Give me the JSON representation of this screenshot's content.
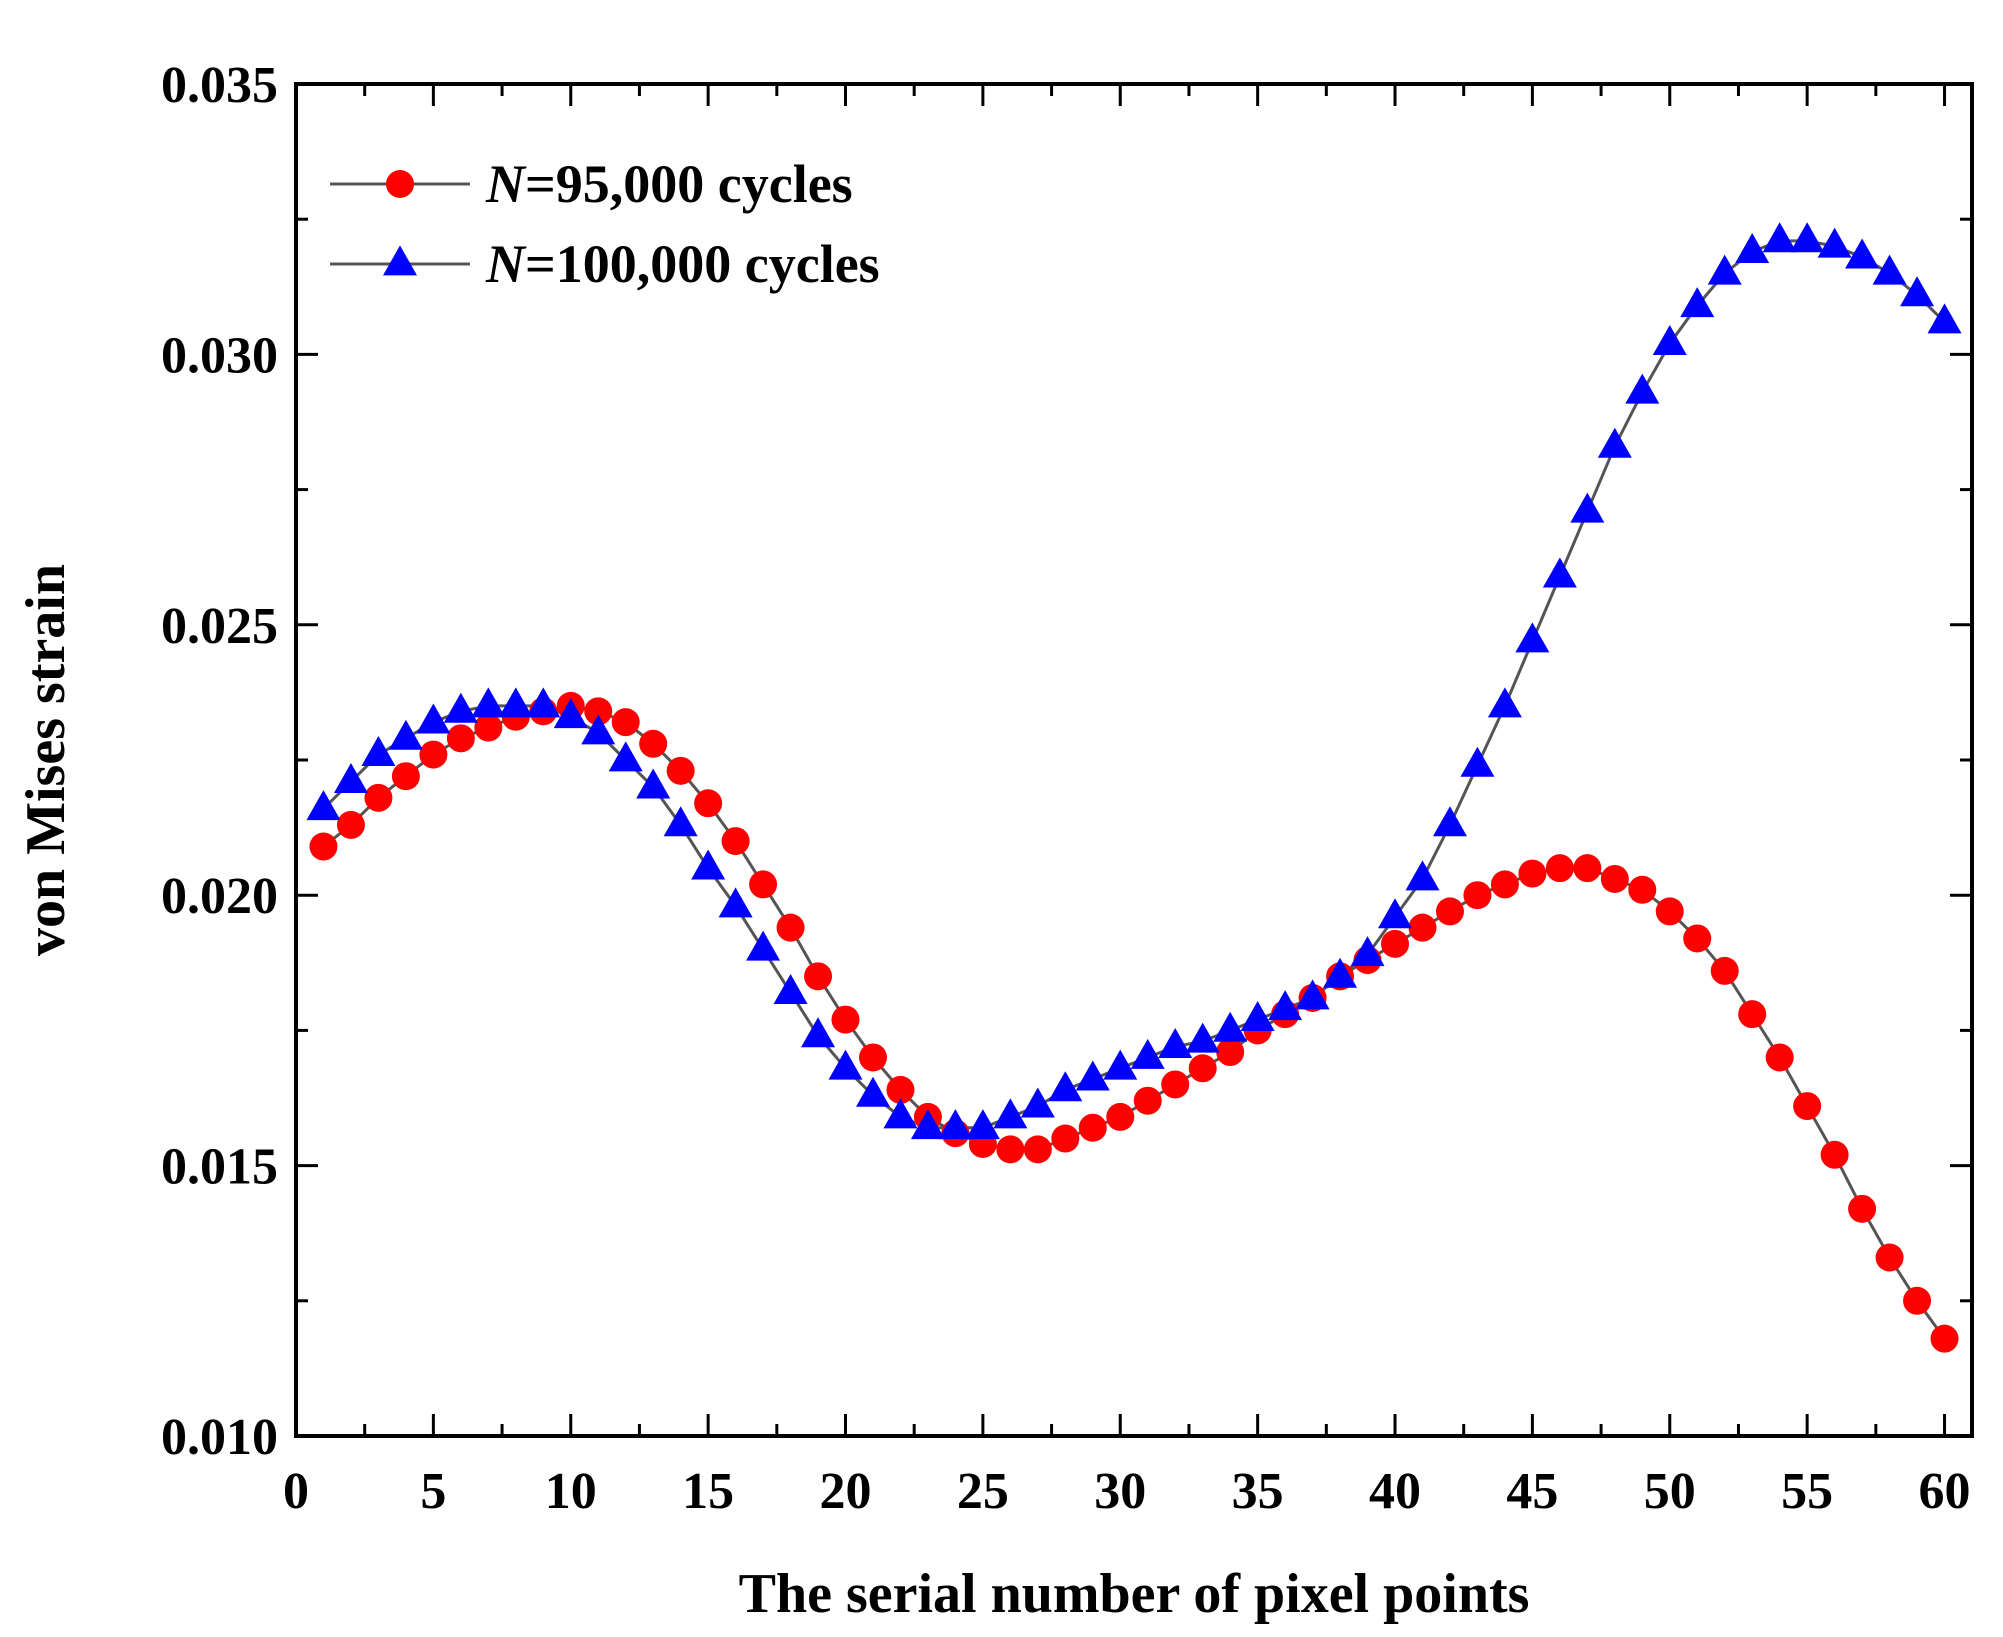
{
  "chart_data": {
    "type": "line",
    "title": "",
    "xlabel": "The serial number of pixel points",
    "ylabel": "von Mises strain",
    "xlim": [
      0,
      61
    ],
    "ylim": [
      0.01,
      0.035
    ],
    "xticks": [
      0,
      5,
      10,
      15,
      20,
      25,
      30,
      35,
      40,
      45,
      50,
      55,
      60
    ],
    "xtick_labels": [
      "0",
      "5",
      "10",
      "15",
      "20",
      "25",
      "30",
      "35",
      "40",
      "45",
      "50",
      "55",
      "60"
    ],
    "yticks": [
      0.01,
      0.015,
      0.02,
      0.025,
      0.03,
      0.035
    ],
    "ytick_labels": [
      "0.010",
      "0.015",
      "0.020",
      "0.025",
      "0.030",
      "0.035"
    ],
    "legend_position": "top-left",
    "x": [
      1,
      2,
      3,
      4,
      5,
      6,
      7,
      8,
      9,
      10,
      11,
      12,
      13,
      14,
      15,
      16,
      17,
      18,
      19,
      20,
      21,
      22,
      23,
      24,
      25,
      26,
      27,
      28,
      29,
      30,
      31,
      32,
      33,
      34,
      35,
      36,
      37,
      38,
      39,
      40,
      41,
      42,
      43,
      44,
      45,
      46,
      47,
      48,
      49,
      50,
      51,
      52,
      53,
      54,
      55,
      56,
      57,
      58,
      59,
      60
    ],
    "series": [
      {
        "name_italic": "N",
        "name_rest": "=95,000 cycles",
        "marker": "circle",
        "color": "#ff0000",
        "line_color": "#555555",
        "values": [
          0.0209,
          0.0213,
          0.0218,
          0.0222,
          0.0226,
          0.0229,
          0.0231,
          0.0233,
          0.0234,
          0.0235,
          0.0234,
          0.0232,
          0.0228,
          0.0223,
          0.0217,
          0.021,
          0.0202,
          0.0194,
          0.0185,
          0.0177,
          0.017,
          0.0164,
          0.0159,
          0.0156,
          0.0154,
          0.0153,
          0.0153,
          0.0155,
          0.0157,
          0.0159,
          0.0162,
          0.0165,
          0.0168,
          0.0171,
          0.0175,
          0.0178,
          0.0181,
          0.0185,
          0.0188,
          0.0191,
          0.0194,
          0.0197,
          0.02,
          0.0202,
          0.0204,
          0.0205,
          0.0205,
          0.0203,
          0.0201,
          0.0197,
          0.0192,
          0.0186,
          0.0178,
          0.017,
          0.0161,
          0.0152,
          0.0142,
          0.0133,
          0.0125,
          0.0118
        ]
      },
      {
        "name_italic": "N",
        "name_rest": "=100,000 cycles",
        "marker": "triangle",
        "color": "#0000ff",
        "line_color": "#555555",
        "values": [
          0.0216,
          0.0221,
          0.0226,
          0.0229,
          0.0232,
          0.0234,
          0.0235,
          0.0235,
          0.0235,
          0.0233,
          0.023,
          0.0225,
          0.022,
          0.0213,
          0.0205,
          0.0198,
          0.019,
          0.0182,
          0.0174,
          0.0168,
          0.0163,
          0.0159,
          0.0157,
          0.0157,
          0.0157,
          0.0159,
          0.0161,
          0.0164,
          0.0166,
          0.0168,
          0.017,
          0.0172,
          0.0173,
          0.0175,
          0.0177,
          0.0179,
          0.0181,
          0.0185,
          0.0189,
          0.0196,
          0.0203,
          0.0213,
          0.0224,
          0.0235,
          0.0247,
          0.0259,
          0.0271,
          0.0283,
          0.0293,
          0.0302,
          0.0309,
          0.0315,
          0.0319,
          0.0321,
          0.0321,
          0.032,
          0.0318,
          0.0315,
          0.0311,
          0.0306
        ]
      }
    ]
  }
}
